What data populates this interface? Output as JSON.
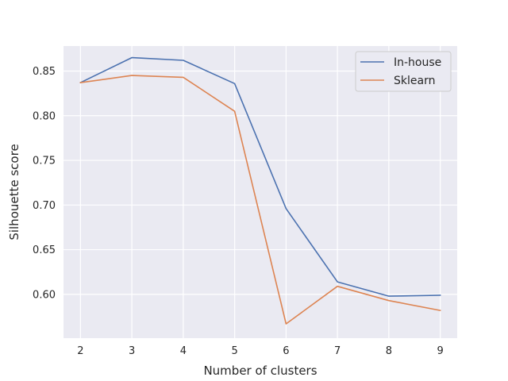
{
  "chart_data": {
    "type": "line",
    "title": "",
    "xlabel": "Number of clusters",
    "ylabel": "Silhouette score",
    "x": [
      2,
      3,
      4,
      5,
      6,
      7,
      8,
      9
    ],
    "x_ticks": [
      "2",
      "3",
      "4",
      "5",
      "6",
      "7",
      "8",
      "9"
    ],
    "y_ticks": [
      "0.60",
      "0.65",
      "0.70",
      "0.75",
      "0.80",
      "0.85"
    ],
    "y_tick_values": [
      0.6,
      0.65,
      0.7,
      0.75,
      0.8,
      0.85
    ],
    "xlim": [
      1.67,
      9.33
    ],
    "ylim": [
      0.551,
      0.878
    ],
    "grid": true,
    "legend_position": "top-right",
    "series": [
      {
        "name": "In-house",
        "color": "#4c72b0",
        "values": [
          0.837,
          0.865,
          0.862,
          0.836,
          0.696,
          0.614,
          0.598,
          0.599
        ]
      },
      {
        "name": "Sklearn",
        "color": "#dd8452",
        "values": [
          0.837,
          0.845,
          0.843,
          0.805,
          0.567,
          0.609,
          0.593,
          0.582
        ]
      }
    ]
  }
}
